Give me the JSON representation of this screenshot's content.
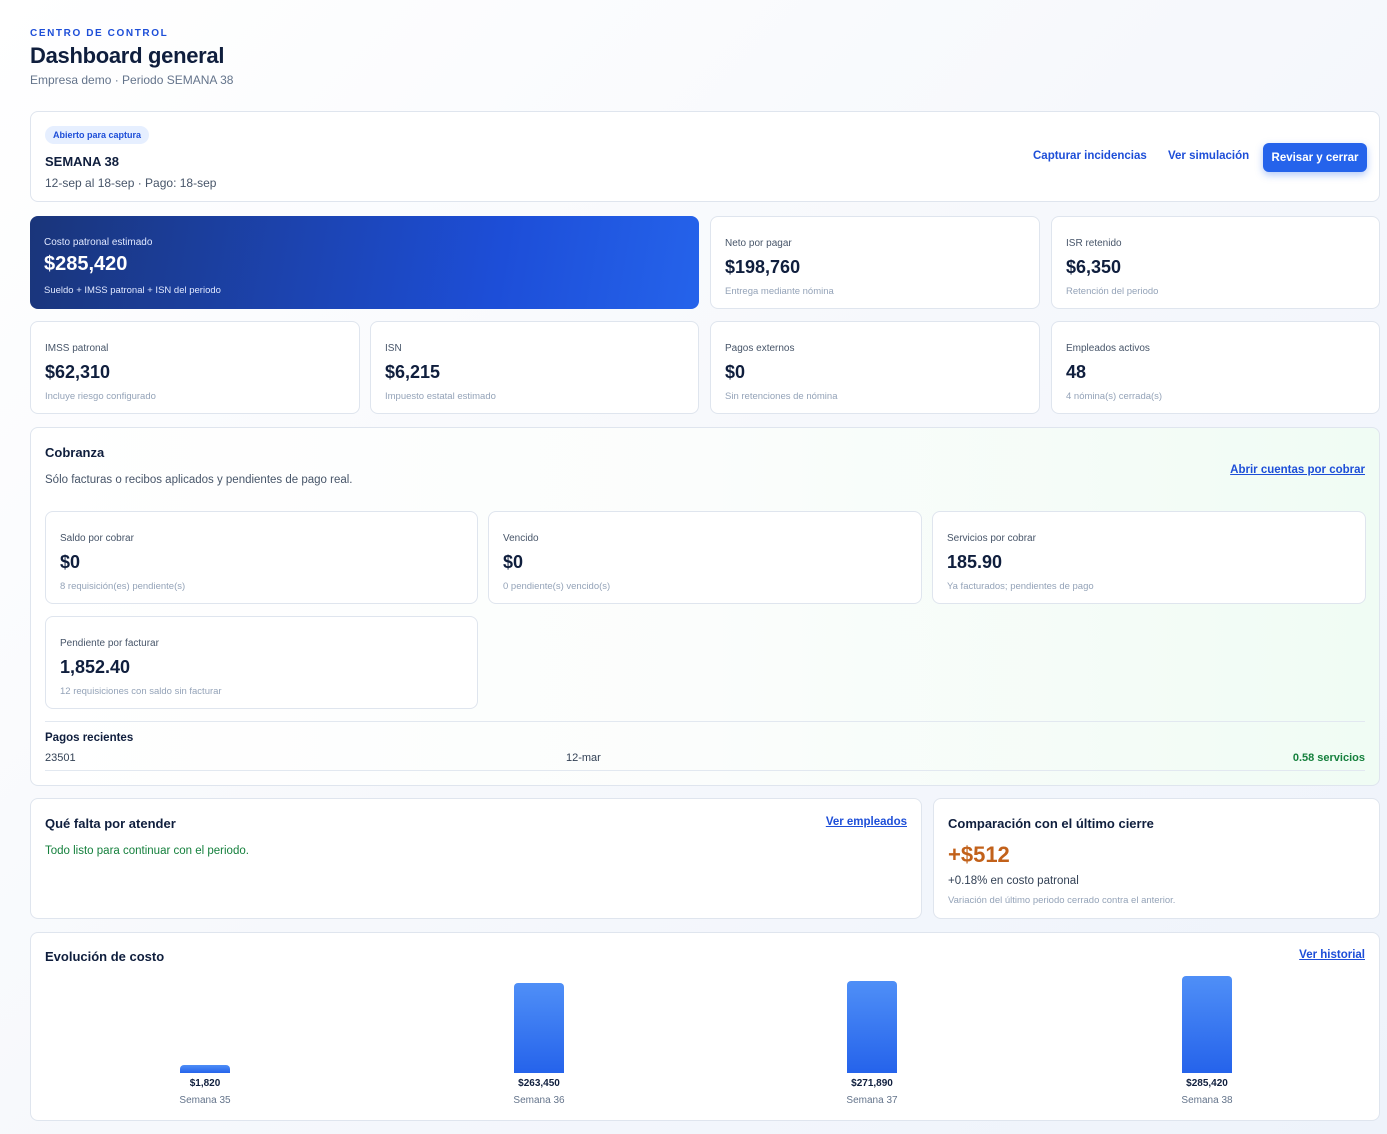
{
  "header": {
    "eyebrow": "CENTRO DE CONTROL",
    "title": "Dashboard general",
    "subtitle": "Empresa demo · Periodo SEMANA 38"
  },
  "period": {
    "badge": "Abierto para captura",
    "name": "SEMANA 38",
    "range": "12-sep al 18-sep · Pago: 18-sep",
    "actions": {
      "capture": "Capturar incidencias",
      "simulation": "Ver simulación",
      "review": "Revisar y cerrar"
    }
  },
  "kpis": {
    "costo": {
      "label": "Costo patronal estimado",
      "value": "$285,420",
      "hint": "Sueldo + IMSS patronal + ISN del periodo"
    },
    "neto": {
      "label": "Neto por pagar",
      "value": "$198,760",
      "hint": "Entrega mediante nómina"
    },
    "isr": {
      "label": "ISR retenido",
      "value": "$6,350",
      "hint": "Retención del periodo"
    },
    "imss": {
      "label": "IMSS patronal",
      "value": "$62,310",
      "hint": "Incluye riesgo configurado"
    },
    "isn": {
      "label": "ISN",
      "value": "$6,215",
      "hint": "Impuesto estatal estimado"
    },
    "externos": {
      "label": "Pagos externos",
      "value": "$0",
      "hint": "Sin retenciones de nómina"
    },
    "empleados": {
      "label": "Empleados activos",
      "value": "48",
      "hint": "4 nómina(s) cerrada(s)"
    }
  },
  "cobranza": {
    "title": "Cobranza",
    "description": "Sólo facturas o recibos aplicados y pendientes de pago real.",
    "link": "Abrir cuentas por cobrar",
    "cards": {
      "saldo": {
        "label": "Saldo por cobrar",
        "value": "$0",
        "hint": "8 requisición(es) pendiente(s)"
      },
      "vencido": {
        "label": "Vencido",
        "value": "$0",
        "hint": "0 pendiente(s) vencido(s)"
      },
      "servicios": {
        "label": "Servicios por cobrar",
        "value": "185.90",
        "hint": "Ya facturados; pendientes de pago"
      },
      "pendiente": {
        "label": "Pendiente por facturar",
        "value": "1,852.40",
        "hint": "12 requisiciones con saldo sin facturar"
      }
    },
    "pagos": {
      "title": "Pagos recientes",
      "rows": [
        {
          "id": "23501",
          "date": "12-mar",
          "amount": "0.58 servicios"
        }
      ]
    }
  },
  "pendientes": {
    "title": "Qué falta por atender",
    "link": "Ver empleados",
    "status": "Todo listo para continuar con el periodo."
  },
  "comparacion": {
    "title": "Comparación con el último cierre",
    "delta": "+$512",
    "percent": "+0.18% en costo patronal",
    "note": "Variación del último periodo cerrado contra el anterior."
  },
  "evolucion": {
    "title": "Evolución de costo",
    "link": "Ver historial"
  },
  "colors": {
    "accent": "#2563eb",
    "success": "#15803d",
    "warning": "#c2611a"
  },
  "chart_data": {
    "type": "bar",
    "categories": [
      "Semana 35",
      "Semana 36",
      "Semana 37",
      "Semana 38"
    ],
    "values": [
      1820,
      263450,
      271890,
      285420
    ],
    "value_labels": [
      "$1,820",
      "$263,450",
      "$271,890",
      "$285,420"
    ],
    "title": "Evolución de costo",
    "ylim": [
      0,
      285420
    ],
    "grid": false
  }
}
